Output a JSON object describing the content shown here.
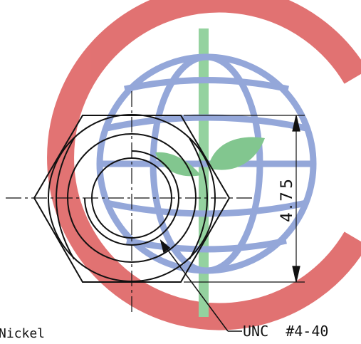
{
  "drawing": {
    "dimension_value": "4.75",
    "material_label": "Nickel",
    "thread_callout": "UNC  #4-40"
  },
  "watermark": {
    "ring_color": "#e06b6b",
    "globe_color": "#8fa3d8",
    "leaf_color": "#7cc48a",
    "stem_color": "#7cc48a",
    "icon_name": "watermark-logo"
  },
  "colors": {
    "line": "#111111",
    "background": "#ffffff"
  }
}
